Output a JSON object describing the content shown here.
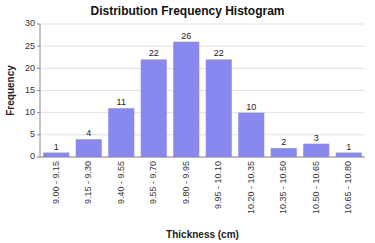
{
  "chart_data": {
    "type": "bar",
    "title": "Distribution Frequency Histogram",
    "xlabel": "Thickness (cm)",
    "ylabel": "Frequency",
    "categories": [
      "9.00 - 9.15",
      "9.15 - 9.30",
      "9.40 - 9.55",
      "9.55 - 9.70",
      "9.80 - 9.95",
      "9.95 - 10.10",
      "10.20 - 10.35",
      "10.35 - 10.50",
      "10.50 - 10.65",
      "10.65 - 10.80"
    ],
    "values": [
      1,
      4,
      11,
      22,
      26,
      22,
      10,
      2,
      3,
      1
    ],
    "color": "#8888ee",
    "ylim": [
      0,
      30
    ],
    "yticks": [
      0,
      5,
      10,
      15,
      20,
      25,
      30
    ],
    "grid": true,
    "data_labels": true
  }
}
